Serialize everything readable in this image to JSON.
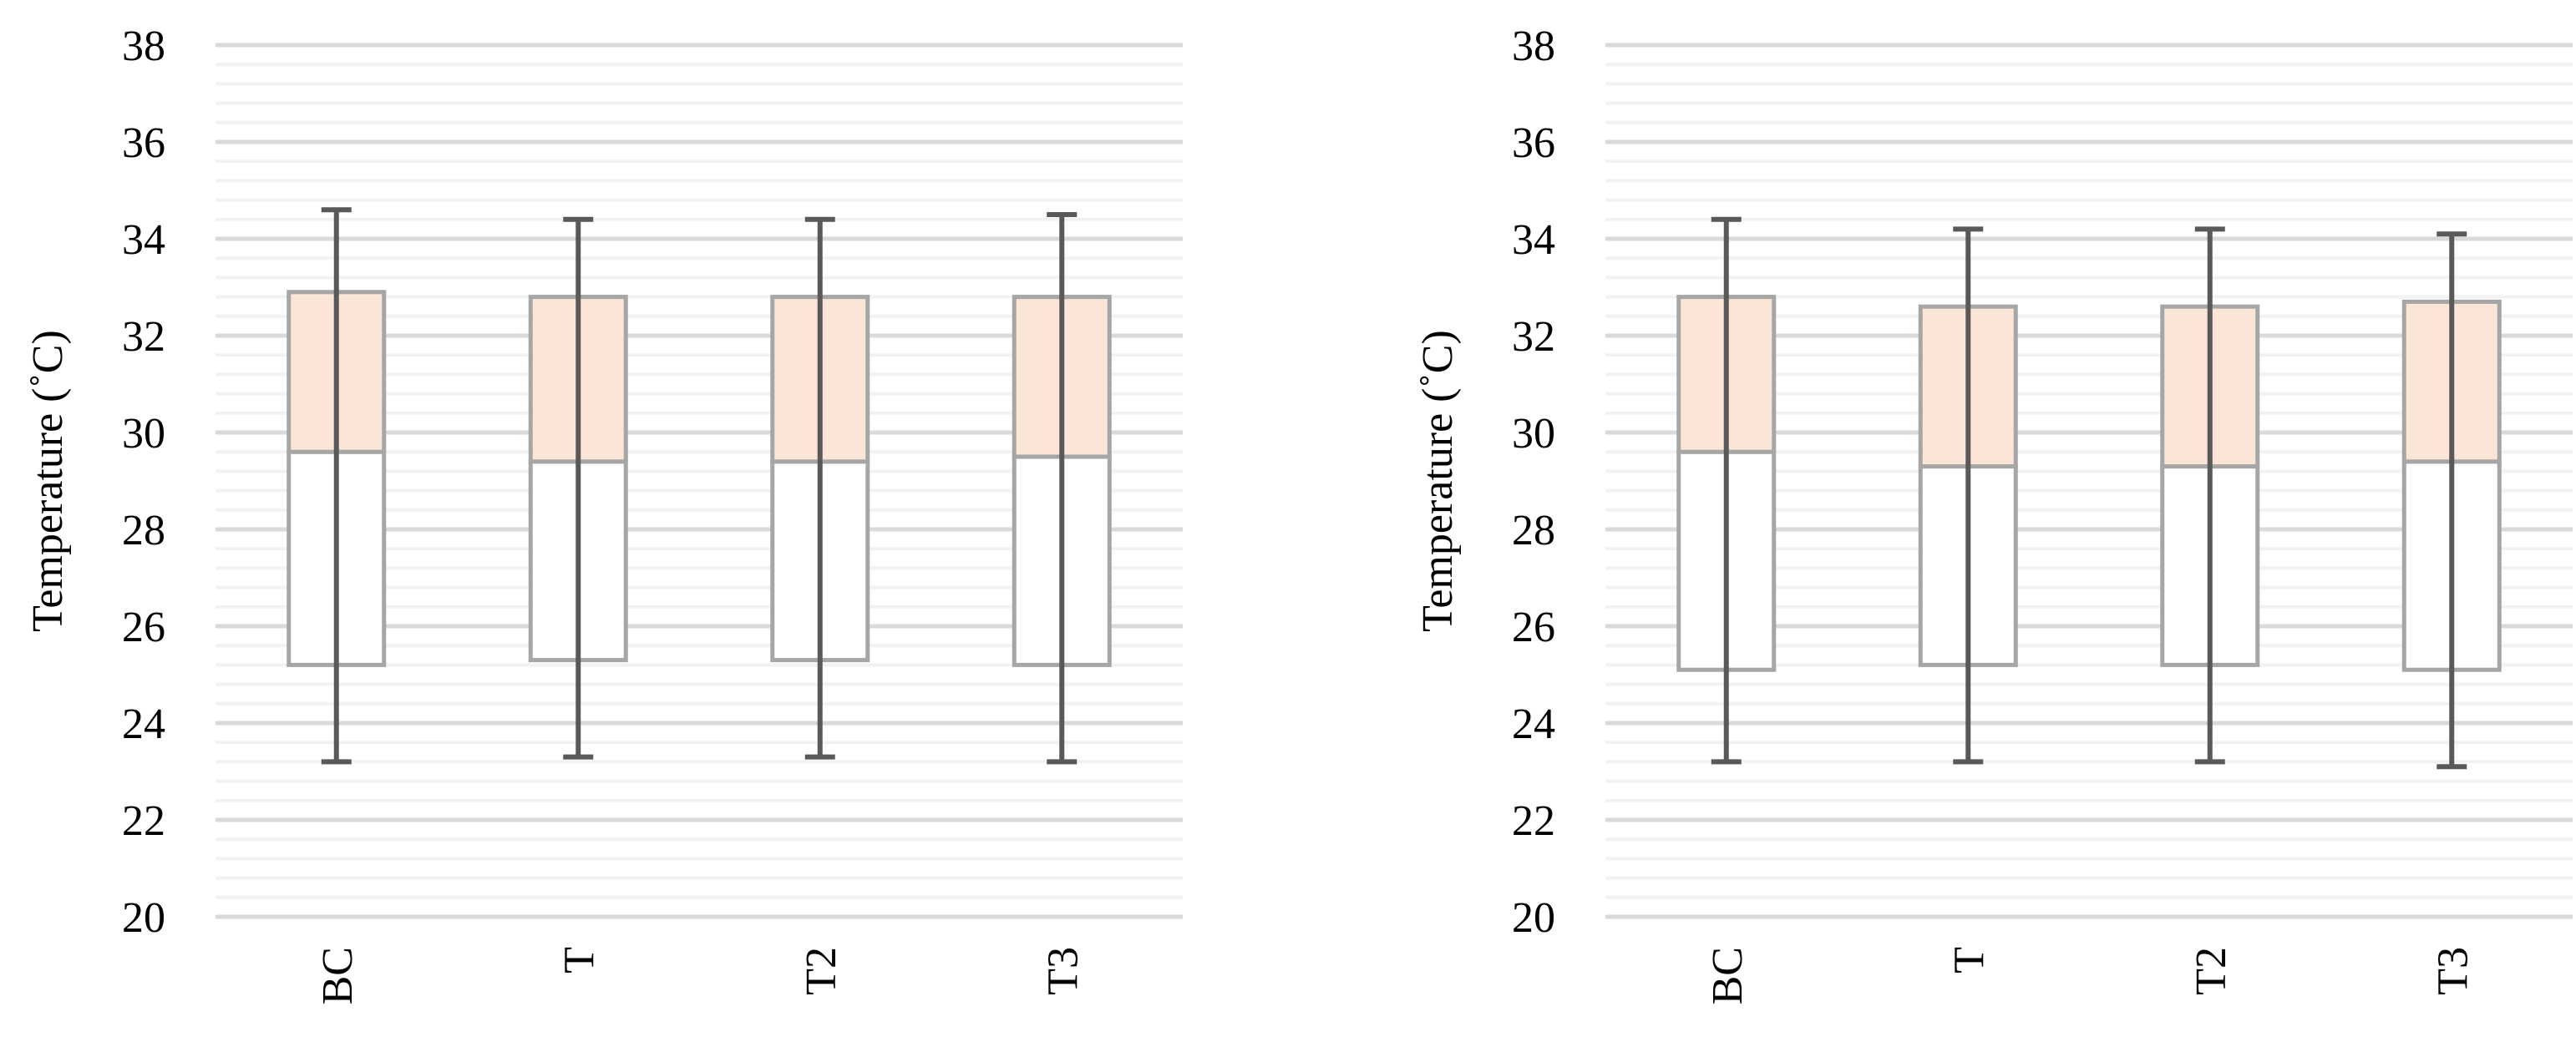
{
  "colors": {
    "box_upper_fill": "#fbe5d6",
    "box_lower_fill": "#ffffff",
    "box_stroke": "#a6a6a6",
    "whisker": "#595959",
    "gridline_major": "#d9d9d9",
    "gridline_minor": "#f2f2f2",
    "text": "#000000"
  },
  "chart_data": [
    {
      "type": "box",
      "title": "",
      "xlabel": "",
      "ylabel": "Temperature (˚C)",
      "ylim": [
        20,
        38
      ],
      "yticks": [
        20,
        22,
        24,
        26,
        28,
        30,
        32,
        34,
        36,
        38
      ],
      "ytick_labels": [
        "20",
        "22",
        "24",
        "26",
        "28",
        "30",
        "32",
        "34",
        "36",
        "38"
      ],
      "grid": "horizontal major (step 2) and minor (step 0.4)",
      "categories": [
        "BC",
        "T",
        "T2",
        "T3"
      ],
      "boxes": [
        {
          "label": "BC",
          "min": 23.2,
          "q1": 25.2,
          "median": 29.6,
          "q3": 32.9,
          "max": 34.6
        },
        {
          "label": "T",
          "min": 23.3,
          "q1": 25.3,
          "median": 29.4,
          "q3": 32.8,
          "max": 34.4
        },
        {
          "label": "T2",
          "min": 23.3,
          "q1": 25.3,
          "median": 29.4,
          "q3": 32.8,
          "max": 34.4
        },
        {
          "label": "T3",
          "min": 23.2,
          "q1": 25.2,
          "median": 29.5,
          "q3": 32.8,
          "max": 34.5
        }
      ]
    },
    {
      "type": "box",
      "title": "",
      "xlabel": "",
      "ylabel": "Temperature (˚C)",
      "ylim": [
        20,
        38
      ],
      "yticks": [
        20,
        22,
        24,
        26,
        28,
        30,
        32,
        34,
        36,
        38
      ],
      "ytick_labels": [
        "20",
        "22",
        "24",
        "26",
        "28",
        "30",
        "32",
        "34",
        "36",
        "38"
      ],
      "grid": "horizontal major (step 2) and minor (step 0.4)",
      "categories": [
        "BC",
        "T",
        "T2",
        "T3"
      ],
      "boxes": [
        {
          "label": "BC",
          "min": 23.2,
          "q1": 25.1,
          "median": 29.6,
          "q3": 32.8,
          "max": 34.4
        },
        {
          "label": "T",
          "min": 23.2,
          "q1": 25.2,
          "median": 29.3,
          "q3": 32.6,
          "max": 34.2
        },
        {
          "label": "T2",
          "min": 23.2,
          "q1": 25.2,
          "median": 29.3,
          "q3": 32.6,
          "max": 34.2
        },
        {
          "label": "T3",
          "min": 23.1,
          "q1": 25.1,
          "median": 29.4,
          "q3": 32.7,
          "max": 34.1
        }
      ]
    }
  ]
}
